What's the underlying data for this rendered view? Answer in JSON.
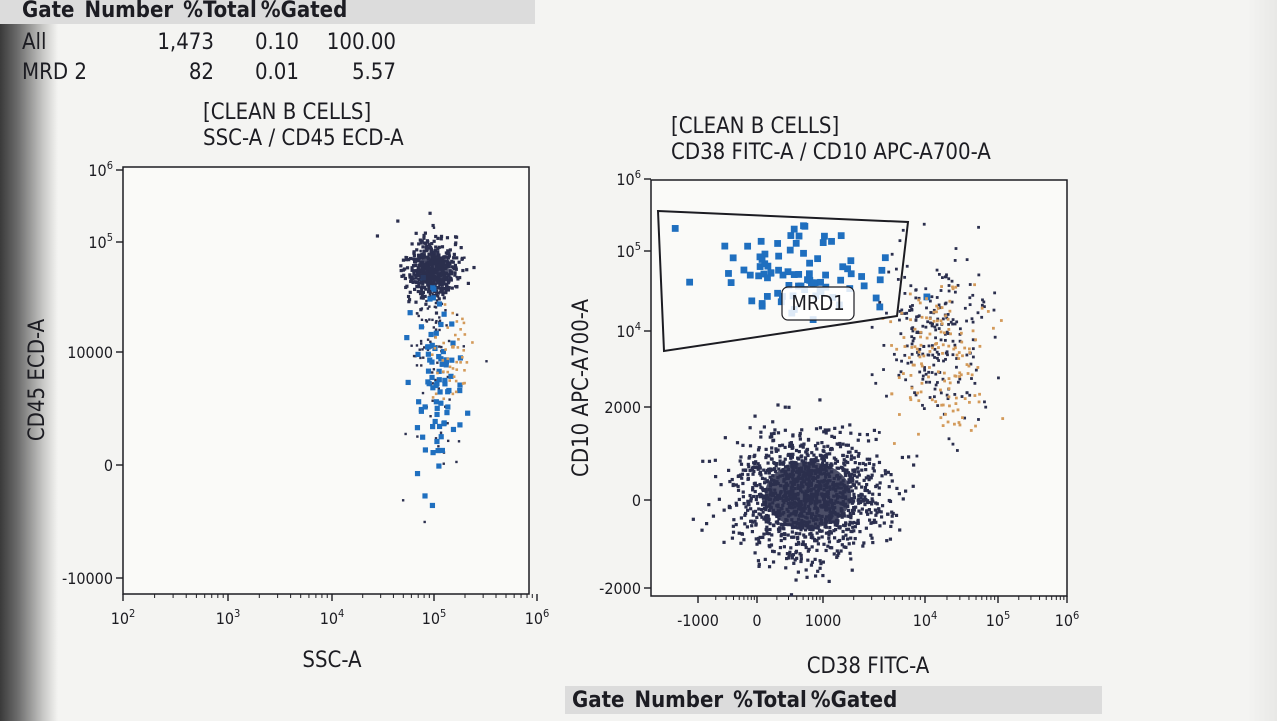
{
  "stats_top": {
    "headers": [
      "Gate",
      "Number",
      "%Total",
      "%Gated"
    ],
    "rows": [
      {
        "gate": "All",
        "number": "1,473",
        "total": "0.10",
        "gated": "100.00"
      },
      {
        "gate": "MRD 2",
        "number": "82",
        "total": "0.01",
        "gated": "5.57"
      }
    ]
  },
  "stats_bottom": {
    "headers": [
      "Gate",
      "Number",
      "%Total",
      "%Gated"
    ]
  },
  "colors": {
    "dark_population": "#2b2f4e",
    "blue_population": "#1f6fbf",
    "orange_population": "#d39a5a",
    "gate_line": "#1c1c22"
  },
  "chart_data": [
    {
      "type": "scatter",
      "title": "[CLEAN B CELLS]",
      "subtitle": "SSC-A / CD45 ECD-A",
      "xlabel": "SSC-A",
      "ylabel": "CD45 ECD-A",
      "x_scale": "log",
      "x_ticks": [
        "10^2",
        "10^3",
        "10^4",
        "10^5",
        "10^6"
      ],
      "y_scale": "logicle",
      "y_ticks": [
        "10^6",
        "10^5",
        "10000",
        "0",
        "-10000"
      ],
      "populations": [
        {
          "color": "dark",
          "x_center": 100000,
          "y_center": 50000
        },
        {
          "color": "blue",
          "x_center": 100000,
          "y_range": [
            -1000,
            20000
          ]
        },
        {
          "color": "orange",
          "x_center": 130000,
          "y_range": [
            2000,
            15000
          ]
        }
      ]
    },
    {
      "type": "scatter",
      "title": "[CLEAN B CELLS]",
      "subtitle": "CD38 FITC-A / CD10 APC-A700-A",
      "xlabel": "CD38 FITC-A",
      "ylabel": "CD10 APC-A700-A",
      "x_scale": "logicle",
      "x_ticks": [
        "-1000",
        "0",
        "1000",
        "10^4",
        "10^5",
        "10^6"
      ],
      "y_scale": "logicle",
      "y_ticks": [
        "10^6",
        "10^5",
        "10^4",
        "2000",
        "0",
        "-2000"
      ],
      "gates": [
        {
          "name": "MRD1"
        }
      ],
      "populations": [
        {
          "color": "dark",
          "x_center": 500,
          "y_center": 0
        },
        {
          "color": "blue",
          "x_center": 300,
          "y_center": 50000
        },
        {
          "color": "orange",
          "x_center": 15000,
          "y_center": 8000
        }
      ]
    }
  ]
}
